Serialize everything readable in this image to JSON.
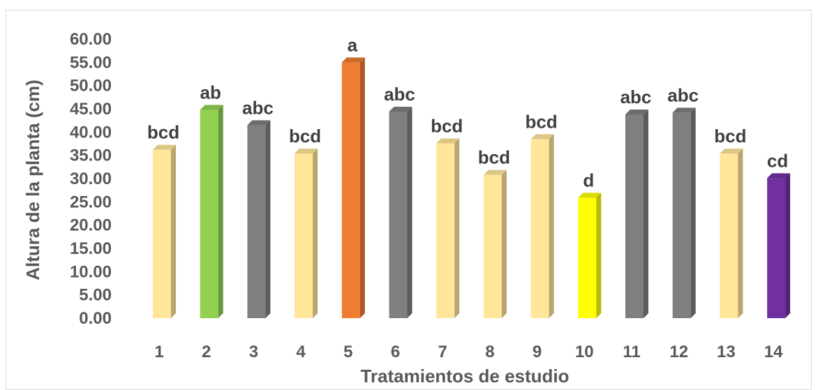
{
  "chart_data": {
    "type": "bar",
    "style": "3d-column",
    "xlabel": "Tratamientos de estudio",
    "ylabel": "Altura de la planta (cm)",
    "ylim": [
      0,
      60
    ],
    "ytick_step": 5,
    "ytick_labels": [
      "0.00",
      "5.00",
      "10.00",
      "15.00",
      "20.00",
      "25.00",
      "30.00",
      "35.00",
      "40.00",
      "45.00",
      "50.00",
      "55.00",
      "60.00"
    ],
    "grid": false,
    "legend": "none",
    "categories": [
      "1",
      "2",
      "3",
      "4",
      "5",
      "6",
      "7",
      "8",
      "9",
      "10",
      "11",
      "12",
      "13",
      "14"
    ],
    "values": [
      36.2,
      44.8,
      41.5,
      35.4,
      55.0,
      44.4,
      37.6,
      30.8,
      38.5,
      25.9,
      43.8,
      44.2,
      35.4,
      30.1
    ],
    "data_labels": [
      "bcd",
      "ab",
      "abc",
      "bcd",
      "a",
      "abc",
      "bcd",
      "bcd",
      "bcd",
      "d",
      "abc",
      "abc",
      "bcd",
      "cd"
    ],
    "colors": [
      "#ffe699",
      "#92d050",
      "#7f7f7f",
      "#ffe699",
      "#ed7d31",
      "#7f7f7f",
      "#ffe699",
      "#ffe699",
      "#ffe699",
      "#ffff00",
      "#7f7f7f",
      "#7f7f7f",
      "#ffe699",
      "#7030a0"
    ]
  }
}
